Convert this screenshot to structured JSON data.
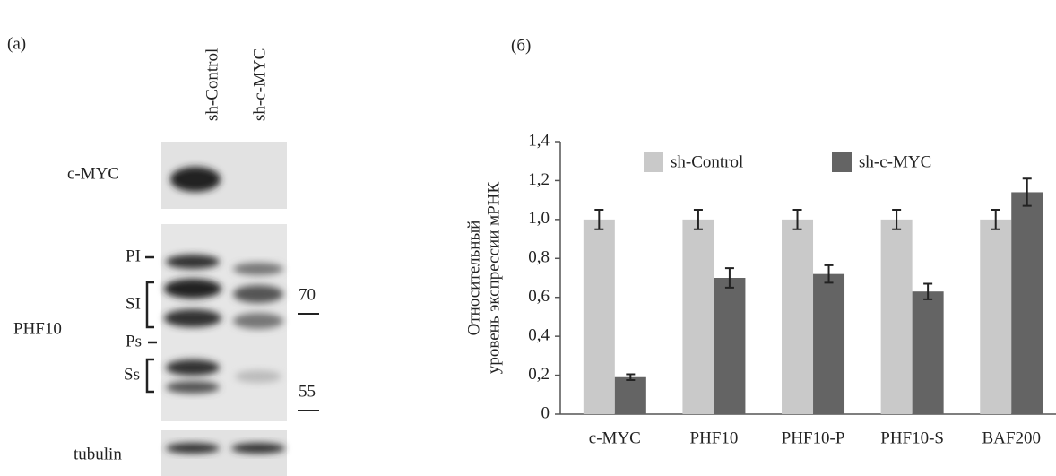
{
  "panel_a": {
    "label": "(a)",
    "lanes": [
      "sh-Control",
      "sh-c-MYC"
    ],
    "rows": [
      "c-MYC",
      "PHF10",
      "tubulin"
    ],
    "band_labels": [
      "PI",
      "SI",
      "Ps",
      "Ss"
    ],
    "markers": [
      "70",
      "55"
    ]
  },
  "chart_data": {
    "type": "bar",
    "panel_label": "(б)",
    "y_label": [
      "Относительный",
      "уровень экспрессии мРНК"
    ],
    "categories": [
      "c-MYC",
      "PHF10",
      "PHF10-P",
      "PHF10-S",
      "BAF200"
    ],
    "series": [
      {
        "name": "sh-Control",
        "color": "#c9c9c9",
        "values": [
          1.0,
          1.0,
          1.0,
          1.0,
          1.0
        ],
        "errors": [
          0.05,
          0.05,
          0.05,
          0.05,
          0.05
        ]
      },
      {
        "name": "sh-c-MYC",
        "color": "#646464",
        "values": [
          0.19,
          0.7,
          0.72,
          0.63,
          1.14
        ],
        "errors": [
          0.015,
          0.05,
          0.045,
          0.04,
          0.07
        ]
      }
    ],
    "ylim": [
      0,
      1.4
    ],
    "yticks": [
      0,
      {
        "value": 0.2,
        "label": "0,2"
      },
      {
        "value": 0.4,
        "label": "0,4"
      },
      {
        "value": 0.6,
        "label": "0,6"
      },
      {
        "value": 0.8,
        "label": "0,8"
      },
      {
        "value": 1.0,
        "label": "1,0"
      },
      {
        "value": 1.2,
        "label": "1,2"
      },
      {
        "value": 1.4,
        "label": "1,4"
      }
    ],
    "grid": false,
    "legend": "top"
  }
}
